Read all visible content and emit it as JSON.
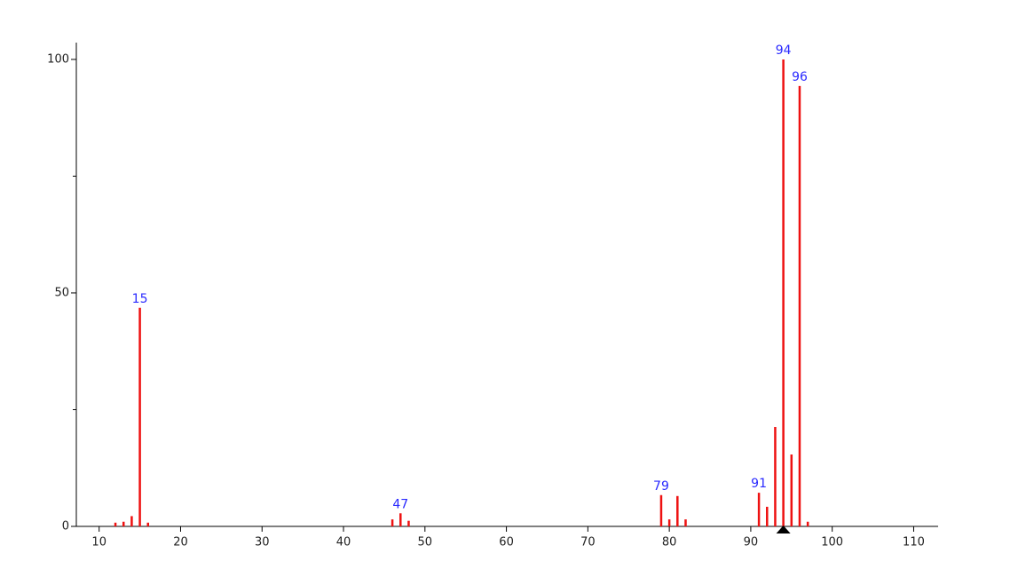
{
  "chart_data": {
    "type": "stem",
    "x": [
      12,
      13,
      14,
      15,
      16,
      46,
      47,
      48,
      79,
      80,
      81,
      82,
      91,
      92,
      93,
      94,
      95,
      96,
      97
    ],
    "values": [
      0.8,
      1,
      2.2,
      46.8,
      0.8,
      1.5,
      2.8,
      1.2,
      6.7,
      1.5,
      6.5,
      1.5,
      7.2,
      4.2,
      21.3,
      100,
      15.4,
      94.3,
      1
    ],
    "color": "#ee1111",
    "annotations": [
      {
        "x": 15,
        "text": "15"
      },
      {
        "x": 47,
        "text": "47"
      },
      {
        "x": 79,
        "text": "79"
      },
      {
        "x": 91,
        "text": "91"
      },
      {
        "x": 94,
        "text": "94"
      },
      {
        "x": 96,
        "text": "96"
      }
    ],
    "annotation_color": "#2a2aff",
    "marker_x": 94,
    "xlim": [
      7.2,
      113
    ],
    "ylim": [
      0,
      103.6
    ],
    "xticks": [
      10,
      20,
      30,
      40,
      50,
      60,
      70,
      80,
      90,
      100,
      110
    ],
    "yticks": [
      0,
      50,
      100
    ],
    "yminorticks": [
      25,
      75
    ]
  }
}
